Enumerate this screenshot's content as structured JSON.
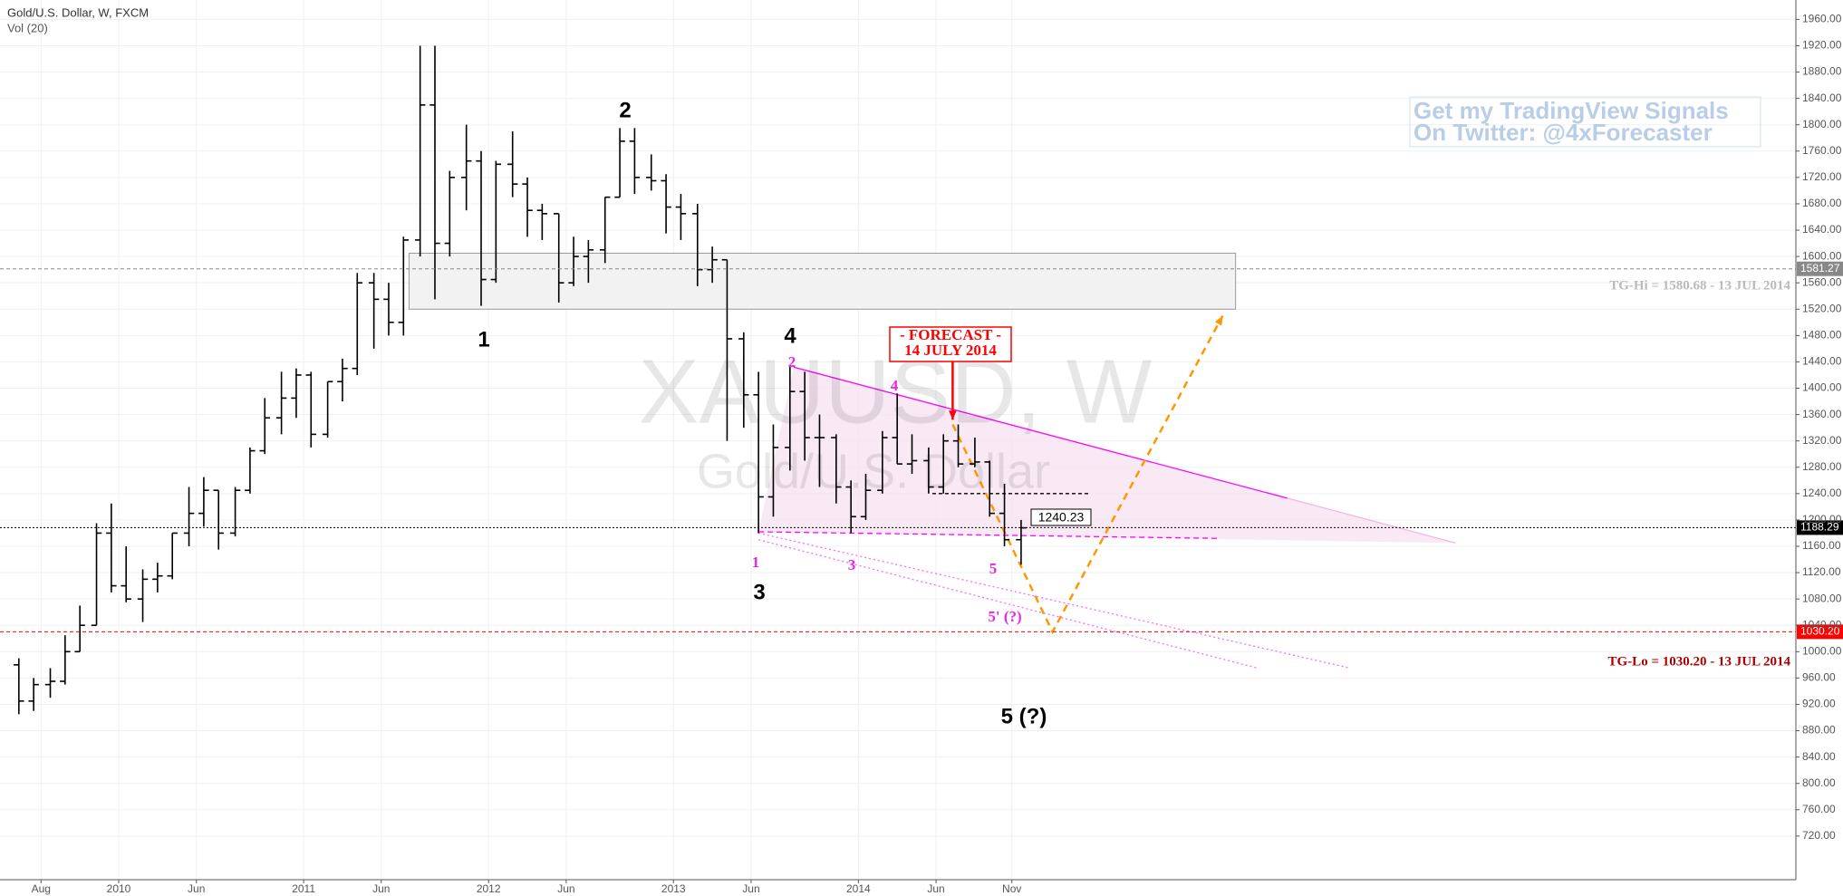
{
  "chart_data": {
    "type": "ohlc",
    "title": "Gold/U.S. Dollar, W, FXCM",
    "subtitle": "Vol (20)",
    "watermark": [
      "XAUUSD, W",
      "Gold/U.S. Dollar"
    ],
    "signals": [
      "Get my TradingView Signals",
      "On Twitter: @4xForecaster"
    ],
    "color": "#000000",
    "grid": true,
    "xlim": [
      2009.358,
      2019.07
    ],
    "xticks": [
      {
        "value": 2009.58,
        "label": "Aug"
      },
      {
        "value": 2010,
        "label": "2010"
      },
      {
        "value": 2010.42,
        "label": "Jun"
      },
      {
        "value": 2011,
        "label": "2011"
      },
      {
        "value": 2011.42,
        "label": "Jun"
      },
      {
        "value": 2012,
        "label": "2012"
      },
      {
        "value": 2012.42,
        "label": "Jun"
      },
      {
        "value": 2013,
        "label": "2013"
      },
      {
        "value": 2013.42,
        "label": "Jun"
      },
      {
        "value": 2014,
        "label": "2014"
      },
      {
        "value": 2014.42,
        "label": "Jun"
      },
      {
        "value": 2014.83,
        "label": "Nov"
      }
    ],
    "ylim": [
      653.8,
      1989.4
    ],
    "yticks": [
      {
        "value": 1960,
        "label": "1960.00"
      },
      {
        "value": 1920,
        "label": "1920.00"
      },
      {
        "value": 1880,
        "label": "1880.00"
      },
      {
        "value": 1840,
        "label": "1840.00"
      },
      {
        "value": 1800,
        "label": "1800.00"
      },
      {
        "value": 1760,
        "label": "1760.00"
      },
      {
        "value": 1720,
        "label": "1720.00"
      },
      {
        "value": 1680,
        "label": "1680.00"
      },
      {
        "value": 1640,
        "label": "1640.00"
      },
      {
        "value": 1600,
        "label": "1600.00"
      },
      {
        "value": 1560,
        "label": "1560.00"
      },
      {
        "value": 1520,
        "label": "1520.00"
      },
      {
        "value": 1480,
        "label": "1480.00"
      },
      {
        "value": 1440,
        "label": "1440.00"
      },
      {
        "value": 1400,
        "label": "1400.00"
      },
      {
        "value": 1360,
        "label": "1360.00"
      },
      {
        "value": 1320,
        "label": "1320.00"
      },
      {
        "value": 1280,
        "label": "1280.00"
      },
      {
        "value": 1240,
        "label": "1240.00"
      },
      {
        "value": 1200,
        "label": "1200.00"
      },
      {
        "value": 1160,
        "label": "1160.00"
      },
      {
        "value": 1120,
        "label": "1120.00"
      },
      {
        "value": 1080,
        "label": "1080.00"
      },
      {
        "value": 1040,
        "label": "1040.00"
      },
      {
        "value": 1000,
        "label": "1000.00"
      },
      {
        "value": 960,
        "label": "960.00"
      },
      {
        "value": 920,
        "label": "920.00"
      },
      {
        "value": 880,
        "label": "880.00"
      },
      {
        "value": 840,
        "label": "840.00"
      },
      {
        "value": 800,
        "label": "800.00"
      },
      {
        "value": 760,
        "label": "760.00"
      },
      {
        "value": 720,
        "label": "720.00"
      }
    ],
    "x": [
      2009.46,
      2009.54,
      2009.63,
      2009.71,
      2009.79,
      2009.88,
      2009.96,
      2010.04,
      2010.13,
      2010.21,
      2010.29,
      2010.38,
      2010.46,
      2010.54,
      2010.63,
      2010.71,
      2010.79,
      2010.88,
      2010.96,
      2011.04,
      2011.13,
      2011.21,
      2011.29,
      2011.38,
      2011.46,
      2011.54,
      2011.63,
      2011.71,
      2011.79,
      2011.88,
      2011.96,
      2012.04,
      2012.13,
      2012.21,
      2012.29,
      2012.38,
      2012.46,
      2012.54,
      2012.63,
      2012.71,
      2012.79,
      2012.88,
      2012.96,
      2013.04,
      2013.13,
      2013.21,
      2013.29,
      2013.38,
      2013.46,
      2013.54,
      2013.63,
      2013.71,
      2013.79,
      2013.88,
      2013.96,
      2014.04,
      2014.13,
      2014.21,
      2014.29,
      2014.38,
      2014.46,
      2014.54,
      2014.63,
      2014.71,
      2014.79,
      2014.88
    ],
    "open": [
      980,
      925,
      950,
      955,
      1000,
      1040,
      1180,
      1100,
      1080,
      1110,
      1115,
      1180,
      1210,
      1245,
      1180,
      1245,
      1305,
      1355,
      1385,
      1420,
      1330,
      1410,
      1430,
      1560,
      1535,
      1500,
      1625,
      1830,
      1620,
      1720,
      1745,
      1565,
      1740,
      1710,
      1670,
      1665,
      1560,
      1600,
      1610,
      1690,
      1775,
      1720,
      1715,
      1675,
      1665,
      1580,
      1595,
      1475,
      1390,
      1235,
      1310,
      1395,
      1325,
      1325,
      1250,
      1205,
      1245,
      1325,
      1285,
      1290,
      1250,
      1320,
      1285,
      1288,
      1210,
      1170
    ],
    "high": [
      990,
      960,
      975,
      1025,
      1070,
      1195,
      1225,
      1160,
      1125,
      1135,
      1180,
      1250,
      1265,
      1245,
      1250,
      1310,
      1385,
      1425,
      1430,
      1425,
      1410,
      1445,
      1575,
      1575,
      1560,
      1630,
      1920,
      1920,
      1730,
      1800,
      1760,
      1745,
      1790,
      1720,
      1680,
      1665,
      1630,
      1625,
      1690,
      1795,
      1795,
      1755,
      1725,
      1695,
      1680,
      1615,
      1595,
      1485,
      1425,
      1345,
      1435,
      1425,
      1360,
      1330,
      1260,
      1270,
      1335,
      1392,
      1330,
      1310,
      1330,
      1345,
      1325,
      1290,
      1255,
      1200
    ],
    "low": [
      905,
      910,
      930,
      950,
      1000,
      1040,
      1090,
      1075,
      1045,
      1090,
      1110,
      1160,
      1190,
      1155,
      1175,
      1240,
      1300,
      1330,
      1355,
      1310,
      1325,
      1380,
      1420,
      1460,
      1480,
      1480,
      1600,
      1535,
      1600,
      1670,
      1525,
      1560,
      1690,
      1630,
      1625,
      1530,
      1555,
      1560,
      1590,
      1690,
      1695,
      1700,
      1635,
      1625,
      1555,
      1560,
      1320,
      1340,
      1180,
      1205,
      1275,
      1290,
      1250,
      1225,
      1180,
      1200,
      1240,
      1285,
      1270,
      1240,
      1240,
      1280,
      1280,
      1205,
      1160,
      1132
    ],
    "close": [
      925,
      950,
      955,
      1000,
      1040,
      1180,
      1100,
      1080,
      1110,
      1115,
      1180,
      1210,
      1245,
      1180,
      1245,
      1305,
      1355,
      1385,
      1420,
      1330,
      1410,
      1430,
      1560,
      1535,
      1500,
      1625,
      1830,
      1620,
      1720,
      1745,
      1565,
      1740,
      1710,
      1670,
      1665,
      1560,
      1600,
      1610,
      1690,
      1775,
      1720,
      1715,
      1675,
      1665,
      1580,
      1595,
      1475,
      1390,
      1235,
      1310,
      1395,
      1325,
      1325,
      1250,
      1205,
      1245,
      1325,
      1285,
      1290,
      1250,
      1320,
      1285,
      1288,
      1210,
      1170,
      1188
    ],
    "levels": [
      {
        "value": 1581.27,
        "label": "1581.27",
        "color": "#888888",
        "dash": "4 3"
      },
      {
        "value": 1188.29,
        "label": "1188.29",
        "color": "#000000",
        "dash": "2 2"
      },
      {
        "value": 1030.2,
        "label": "1030.20",
        "color": "#ff0000",
        "dash": "4 3"
      }
    ],
    "zones": [
      {
        "x": [
          2011.57,
          2016.04
        ],
        "y": [
          1520,
          1605
        ],
        "color": "#f2f2f2"
      }
    ],
    "polygons": [
      {
        "x": [
          2013.65,
          2017.23,
          2013.46
        ],
        "y": [
          1432,
          1165,
          1182
        ],
        "color": "#f7e4f1"
      }
    ],
    "trendlines": [
      {
        "x": [
          2013.65,
          2016.32
        ],
        "y": [
          1432,
          1233
        ],
        "color": "#ff00ff",
        "dash": "none"
      },
      {
        "x": [
          2016.32,
          2017.23
        ],
        "y": [
          1233,
          1165
        ],
        "color": "#f5b5e5",
        "dash": "none"
      },
      {
        "x": [
          2013.46,
          2015.95
        ],
        "y": [
          1182,
          1172
        ],
        "color": "#ff00ff",
        "dash": "6 4"
      },
      {
        "x": [
          2013.46,
          2016.66
        ],
        "y": [
          1180,
          975
        ],
        "color": "#ff66ff",
        "dash": "2 3"
      },
      {
        "x": [
          2013.46,
          2016.16
        ],
        "y": [
          1170,
          975
        ],
        "color": "#ff66ff",
        "dash": "2 3"
      },
      {
        "x": [
          2014.4,
          2015.25
        ],
        "y": [
          1240,
          1240
        ],
        "color": "#000000",
        "dash": "4 3"
      },
      {
        "x": [
          2014.51,
          2015.05,
          2015.97
        ],
        "y": [
          1345,
          1030,
          1510
        ],
        "color": "#ff9800",
        "dash": "8 6",
        "arrow": true
      },
      {
        "x": [
          2014.51,
          2014.51
        ],
        "y": [
          1450,
          1352
        ],
        "color": "#ff0000",
        "dash": "none",
        "arrow": true
      }
    ],
    "wave_labels": [
      "1",
      "2",
      "3",
      "4",
      "5 (?)"
    ],
    "sub_labels": [
      "1",
      "2",
      "3",
      "4",
      "5",
      "5' (?)"
    ],
    "forecast": [
      "- FORECAST -",
      "14 JULY 2014"
    ],
    "price_label": 1240.23,
    "targets": [
      "TG-Hi = 1580.68 - 13 JUL 2014",
      "TG-Lo = 1030.20 - 13 JUL 2014"
    ]
  }
}
